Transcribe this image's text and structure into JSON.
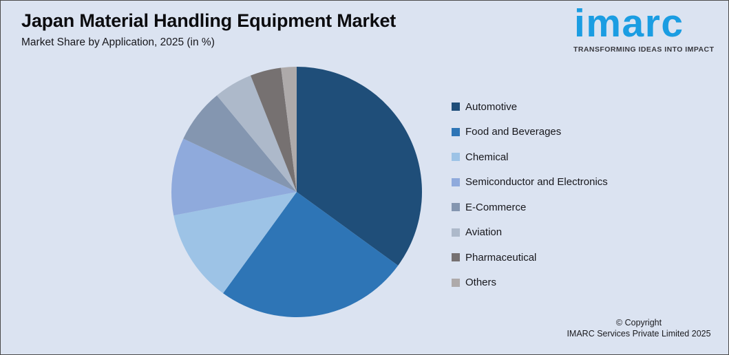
{
  "header": {
    "title": "Japan Material Handling Equipment Market",
    "subtitle": "Market Share by Application, 2025 (in %)"
  },
  "logo": {
    "brand": "imarc",
    "tagline": "TRANSFORMING IDEAS INTO IMPACT",
    "brand_color": "#1B9DE2"
  },
  "canvas": {
    "background": "#DBE3F1"
  },
  "chart_data": {
    "type": "pie",
    "title": "Japan Material Handling Equipment Market",
    "subtitle": "Market Share by Application, 2025 (in %)",
    "unit": "%",
    "start_angle_deg": 0,
    "direction": "clockwise",
    "legend_position": "right",
    "data_labels_shown": false,
    "categories": [
      "Automotive",
      "Food and Beverages",
      "Chemical",
      "Semiconductor and Electronics",
      "E-Commerce",
      "Aviation",
      "Pharmaceutical",
      "Others"
    ],
    "values": [
      35,
      25,
      12,
      10,
      7,
      5,
      4,
      2
    ],
    "colors": [
      "#1F4E79",
      "#2E75B6",
      "#9DC3E6",
      "#8FAADC",
      "#8496B0",
      "#ADB9CA",
      "#767171",
      "#AEAAAA"
    ]
  },
  "footer": {
    "copyright_line1": "© Copyright",
    "copyright_line2": "IMARC Services Private Limited 2025"
  }
}
